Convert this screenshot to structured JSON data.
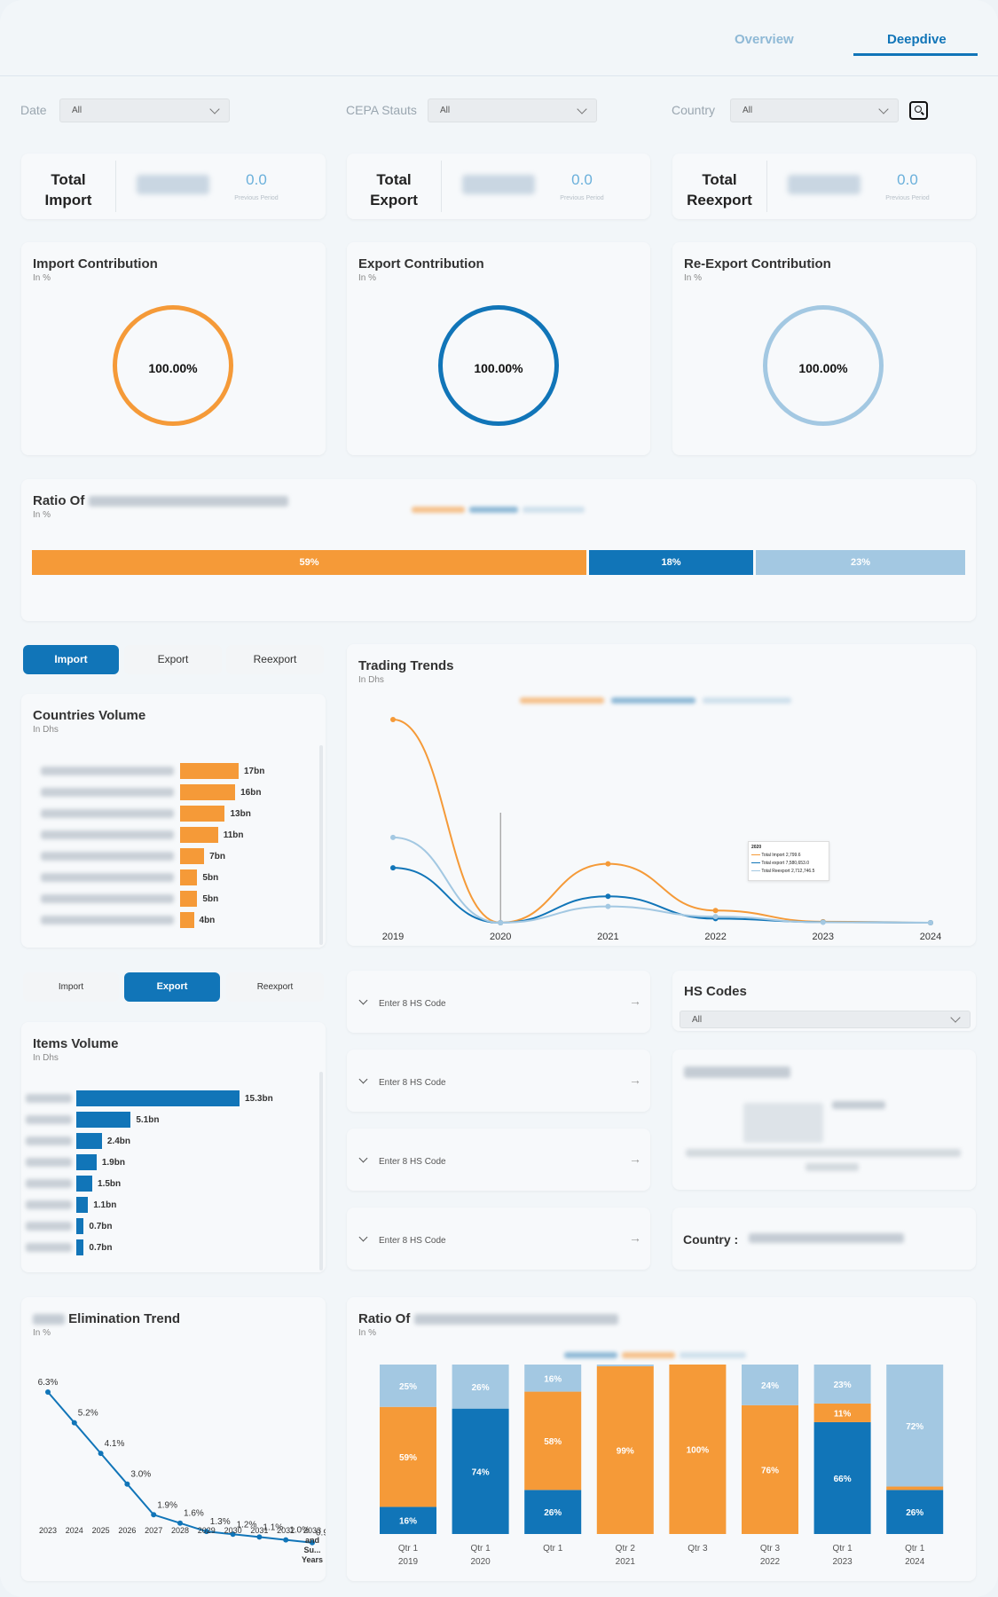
{
  "tabs": {
    "overview": "Overview",
    "deepdive": "Deepdive"
  },
  "filters": {
    "date": {
      "label": "Date",
      "value": "All"
    },
    "cepa": {
      "label": "CEPA Stauts",
      "value": "All"
    },
    "country": {
      "label": "Country",
      "value": "All"
    }
  },
  "kpis": [
    {
      "label_1": "Total",
      "label_2": "Import",
      "change": "0.0",
      "sub": "Previous Period"
    },
    {
      "label_1": "Total",
      "label_2": "Export",
      "change": "0.0",
      "sub": "Previous Period"
    },
    {
      "label_1": "Total",
      "label_2": "Reexport",
      "change": "0.0",
      "sub": "Previous Period"
    }
  ],
  "contributions": [
    {
      "title": "Import Contribution",
      "sub": "In %",
      "value": "100.00%",
      "color": "#f59a38"
    },
    {
      "title": "Export Contribution",
      "sub": "In %",
      "value": "100.00%",
      "color": "#1175b8"
    },
    {
      "title": "Re-Export Contribution",
      "sub": "In %",
      "value": "100.00%",
      "color": "#a3c8e2"
    }
  ],
  "ratio": {
    "title": "Ratio Of",
    "sub": "In %",
    "segments": [
      {
        "label": "59%",
        "value": 59,
        "color": "#f59a38"
      },
      {
        "label": "18%",
        "value": 18,
        "color": "#1175b8"
      },
      {
        "label": "23%",
        "value": 23,
        "color": "#a3c8e2"
      }
    ]
  },
  "countries_toggle": {
    "import": "Import",
    "export": "Export",
    "reexport": "Reexport"
  },
  "countries_volume": {
    "title": "Countries Volume",
    "sub": "In Dhs",
    "bars": [
      {
        "label": "17bn",
        "value": 17
      },
      {
        "label": "16bn",
        "value": 16
      },
      {
        "label": "13bn",
        "value": 13
      },
      {
        "label": "11bn",
        "value": 11
      },
      {
        "label": "7bn",
        "value": 7
      },
      {
        "label": "5bn",
        "value": 5
      },
      {
        "label": "5bn",
        "value": 5
      },
      {
        "label": "4bn",
        "value": 4
      }
    ],
    "color": "#f59a38"
  },
  "trading_trends": {
    "title": "Trading Trends",
    "sub": "In Dhs",
    "tooltip": {
      "year": "2020",
      "rows": [
        {
          "name": "Total Import",
          "value": "2,799.6"
        },
        {
          "name": "Total export",
          "value": "7,580,653.0"
        },
        {
          "name": "Total Reexport",
          "value": "2,712,746.5"
        }
      ]
    },
    "chart_data": {
      "type": "line",
      "x": [
        "2019",
        "2020",
        "2021",
        "2022",
        "2023",
        "2024"
      ],
      "series": [
        {
          "values": [
            100,
            0,
            29,
            6,
            0.5,
            0
          ],
          "color": "#f59a38"
        },
        {
          "values": [
            27,
            0,
            13,
            2,
            0.3,
            0
          ],
          "color": "#1175b8"
        },
        {
          "values": [
            42,
            0,
            8,
            3,
            0.2,
            0
          ],
          "color": "#a3c8e2"
        }
      ]
    }
  },
  "items_toggle": {
    "import": "Import",
    "export": "Export",
    "reexport": "Reexport"
  },
  "items_volume": {
    "title": "Items Volume",
    "sub": "In Dhs",
    "bars": [
      {
        "label": "15.3bn",
        "value": 15.3
      },
      {
        "label": "5.1bn",
        "value": 5.1
      },
      {
        "label": "2.4bn",
        "value": 2.4
      },
      {
        "label": "1.9bn",
        "value": 1.9
      },
      {
        "label": "1.5bn",
        "value": 1.5
      },
      {
        "label": "1.1bn",
        "value": 1.1
      },
      {
        "label": "0.7bn",
        "value": 0.7
      },
      {
        "label": "0.7bn",
        "value": 0.7
      }
    ],
    "color": "#1175b8"
  },
  "hs_inputs": {
    "placeholder": "Enter 8 HS Code"
  },
  "hs_codes": {
    "title": "HS Codes",
    "value": "All"
  },
  "country_label": "Country :",
  "elimination": {
    "title": "Elimination Trend",
    "sub": "In %",
    "chart_data": {
      "type": "line",
      "x": [
        "2023",
        "2024",
        "2025",
        "2026",
        "2027",
        "2028",
        "2029",
        "2030",
        "2031",
        "2032",
        "2033 and Su... Years"
      ],
      "values": [
        6.3,
        5.2,
        4.1,
        3.0,
        1.9,
        1.6,
        1.3,
        1.2,
        1.1,
        1.0,
        0.9
      ],
      "labels": [
        "6.3%",
        "5.2%",
        "4.1%",
        "3.0%",
        "1.9%",
        "1.6%",
        "1.3%",
        "1.2%",
        "1.1%",
        "1.0%",
        "0.9%"
      ],
      "color": "#1175b8"
    }
  },
  "ratio_quarterly": {
    "title": "Ratio Of",
    "sub": "In %",
    "chart_data": {
      "type": "bar",
      "categories": [
        [
          "Qtr 1",
          "2019"
        ],
        [
          "Qtr 1",
          "2020"
        ],
        [
          "Qtr 1",
          ""
        ],
        [
          "Qtr 2",
          "2021"
        ],
        [
          "Qtr 3",
          ""
        ],
        [
          "Qtr 3",
          "2022"
        ],
        [
          "Qtr 1",
          "2023"
        ],
        [
          "Qtr 1",
          "2024"
        ]
      ],
      "series": [
        {
          "color": "#1175b8",
          "values": [
            16,
            74,
            26,
            0,
            0,
            0,
            66,
            26
          ],
          "labels": [
            "16%",
            "74%",
            "26%",
            "",
            "",
            "",
            "66%",
            "26%"
          ]
        },
        {
          "color": "#f59a38",
          "values": [
            59,
            0,
            58,
            99,
            100,
            76,
            11,
            2
          ],
          "labels": [
            "59%",
            "",
            "58%",
            "99%",
            "100%",
            "76%",
            "11%",
            ""
          ]
        },
        {
          "color": "#a3c8e2",
          "values": [
            25,
            26,
            16,
            1,
            0,
            24,
            23,
            72
          ],
          "labels": [
            "25%",
            "26%",
            "16%",
            "",
            "",
            "24%",
            "23%",
            "72%"
          ]
        }
      ]
    }
  }
}
